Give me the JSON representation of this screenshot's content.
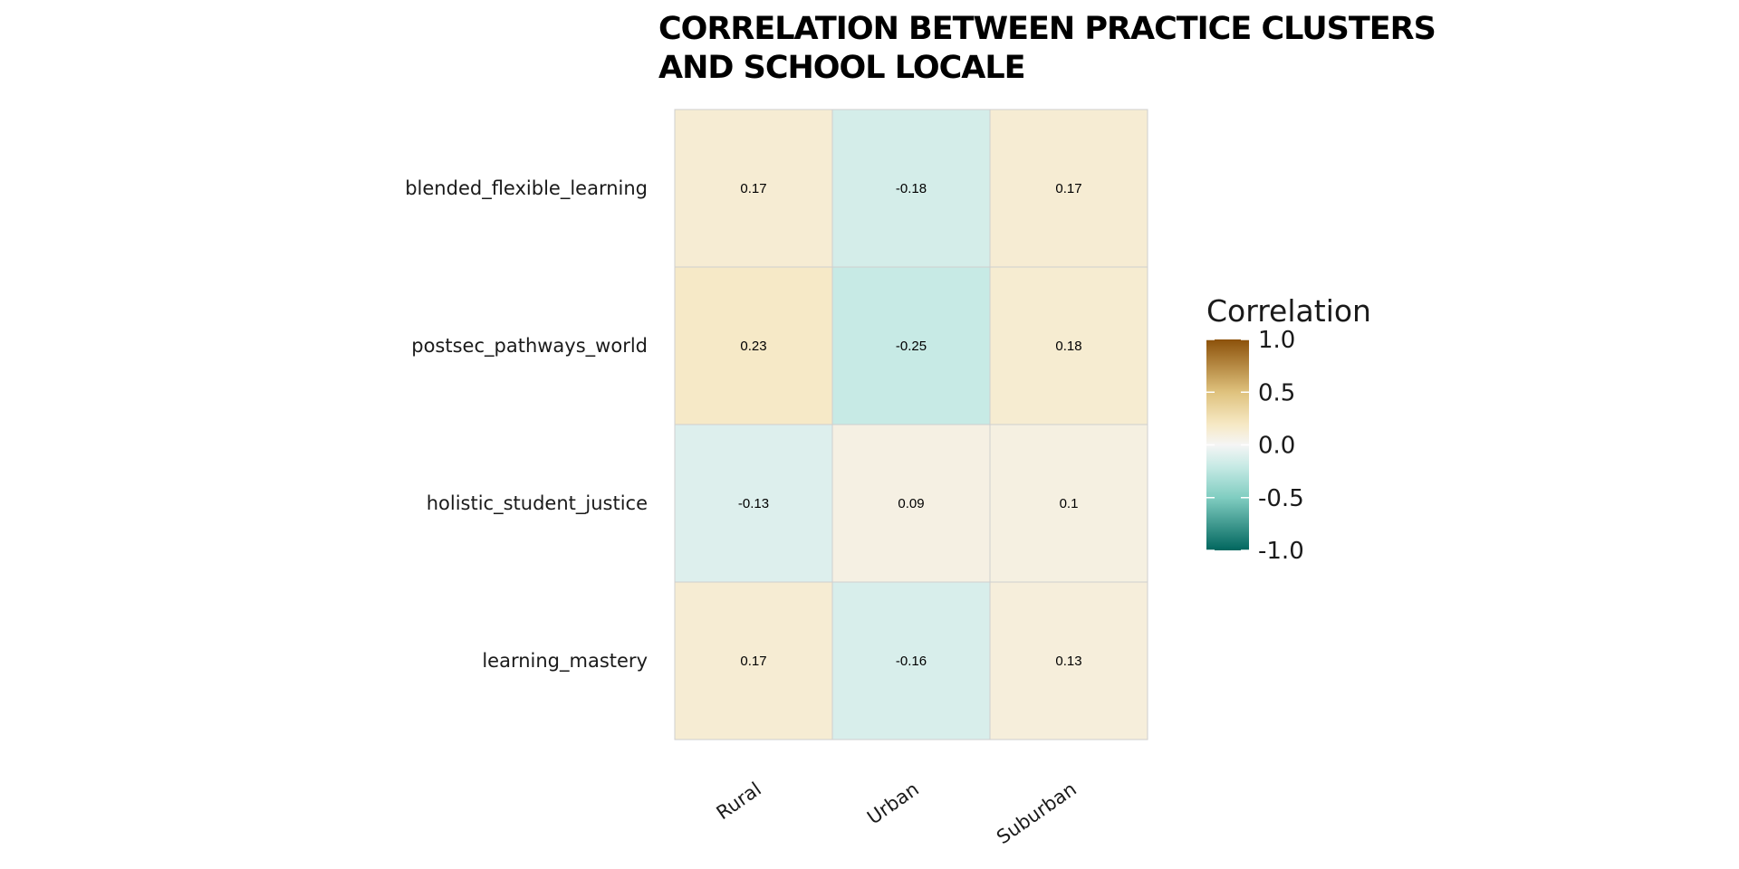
{
  "chart_data": {
    "type": "heatmap",
    "title_lines": [
      "CORRELATION BETWEEN PRACTICE CLUSTERS",
      "AND SCHOOL LOCALE"
    ],
    "rows": [
      "blended_flexible_learning",
      "postsec_pathways_world",
      "holistic_student_justice",
      "learning_mastery"
    ],
    "columns": [
      "Rural",
      "Urban",
      "Suburban"
    ],
    "values": [
      [
        0.17,
        -0.18,
        0.17
      ],
      [
        0.23,
        -0.25,
        0.18
      ],
      [
        -0.13,
        0.09,
        0.1
      ],
      [
        0.17,
        -0.16,
        0.13
      ]
    ],
    "value_labels": [
      [
        "0.17",
        "-0.18",
        "0.17"
      ],
      [
        "0.23",
        "-0.25",
        "0.18"
      ],
      [
        "-0.13",
        "0.09",
        "0.1"
      ],
      [
        "0.17",
        "-0.16",
        "0.13"
      ]
    ],
    "legend": {
      "title": "Correlation",
      "ticks": [
        "1.0",
        "0.5",
        "0.0",
        "-0.5",
        "-1.0"
      ],
      "tick_values": [
        1.0,
        0.5,
        0.0,
        -0.5,
        -1.0
      ],
      "range": [
        -1,
        1
      ],
      "placement": "right"
    },
    "color_scale": {
      "low": "#01665e",
      "mid_low": "#c7eae5",
      "mid": "#f5f5f5",
      "mid_high": "#f6e8c3",
      "high": "#8c510a"
    }
  }
}
